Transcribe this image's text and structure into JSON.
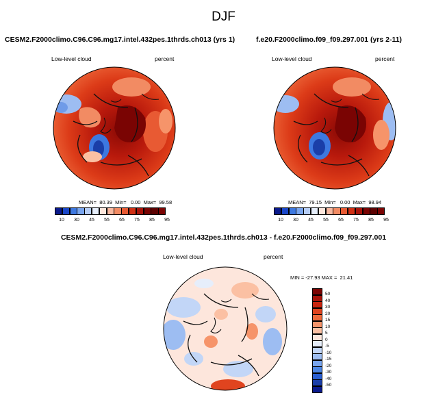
{
  "season": "DJF",
  "panels": [
    {
      "title": "CESM2.F2000climo.C96.C96.mg17.intel.432pes.1thrds.ch013 (yrs 1)",
      "variable": "Low-level cloud",
      "units": "percent",
      "stats": "MEAN=  80.39  Min=   0.00  Max=  99.58",
      "colorbar_labels": [
        "10",
        "30",
        "45",
        "55",
        "65",
        "75",
        "85",
        "95"
      ]
    },
    {
      "title": "f.e20.F2000climo.f09_f09.297.001 (yrs 2-11)",
      "variable": "Low-level cloud",
      "units": "percent",
      "stats": "MEAN=  79.15  Min=   0.00  Max=  98.94",
      "colorbar_labels": [
        "10",
        "30",
        "45",
        "55",
        "65",
        "75",
        "85",
        "95"
      ]
    }
  ],
  "difference": {
    "title": "CESM2.F2000climo.C96.C96.mg17.intel.432pes.1thrds.ch013 - f.e20.F2000climo.f09_f09.297.001",
    "variable": "Low-level cloud",
    "units": "percent",
    "stats": "MIN = -27.93 MAX =  21.41",
    "colorbar_labels": [
      "50",
      "40",
      "30",
      "20",
      "15",
      "10",
      "5",
      "0",
      "-5",
      "-10",
      "-15",
      "-20",
      "-30",
      "-40",
      "-50"
    ]
  },
  "colors": {
    "abs_colorbar": [
      "#0a1a8c",
      "#1a47c9",
      "#3d78e0",
      "#79a5ee",
      "#b6cdf6",
      "#e6eefb",
      "#fde6dc",
      "#f9b9a0",
      "#f28b63",
      "#e85a33",
      "#d02f14",
      "#a8130a",
      "#7a0403"
    ],
    "diff_colorbar": [
      "#7a0403",
      "#a8130a",
      "#c9250f",
      "#e0441f",
      "#ee6a3c",
      "#f6946a",
      "#fbc0a3",
      "#fde6dc",
      "#e6eefb",
      "#c2d6f7",
      "#9dbdf2",
      "#79a5ee",
      "#4d86e3",
      "#2a5fd2",
      "#1a3ea8",
      "#0a1a8c"
    ]
  }
}
